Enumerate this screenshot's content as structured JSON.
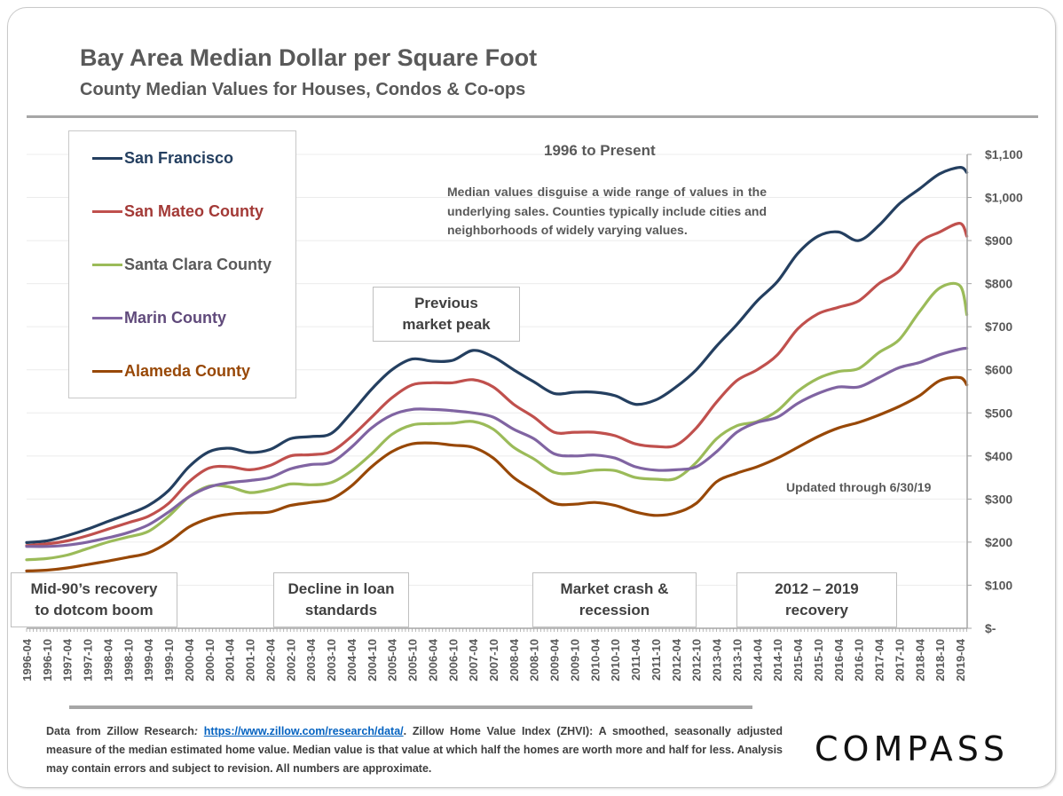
{
  "header": {
    "title": "Bay Area Median Dollar per Square Foot",
    "subtitle": "County Median Values for Houses, Condos & Co-ops"
  },
  "annotations": {
    "period": "1996 to Present",
    "note": "Median values disguise a wide range of values in the underlying sales. Counties typically include cities and neighborhoods of widely varying values.",
    "updated": "Updated through 6/30/19",
    "callouts": [
      {
        "text_line1": "Previous",
        "text_line2": "market peak"
      },
      {
        "text_line1": "Mid-90’s recovery",
        "text_line2": "to dotcom boom"
      },
      {
        "text_line1": "Decline in loan",
        "text_line2": "standards"
      },
      {
        "text_line1": "Market crash &",
        "text_line2": "recession"
      },
      {
        "text_line1": "2012 – 2019",
        "text_line2": "recovery"
      }
    ]
  },
  "footer": {
    "prefix": "Data from Zillow Research",
    "colon": ": ",
    "link": "https://www.zillow.com/research/data/",
    "body": ". Zillow Home Value Index (ZHVI): A smoothed, seasonally adjusted measure of the median estimated home value. Median value is that value at which half the homes are worth more and half for less. Analysis may contain errors and subject to revision. All numbers are approximate.",
    "logo": "COMPASS"
  },
  "chart_data": {
    "type": "line",
    "title": "Bay Area Median Dollar per Square Foot",
    "subtitle": "County Median Values for Houses, Condos & Co-ops",
    "xlabel": "",
    "ylabel": "",
    "ylim": [
      0,
      1100
    ],
    "y_ticks": [
      0,
      100,
      200,
      300,
      400,
      500,
      600,
      700,
      800,
      900,
      1000,
      1100
    ],
    "y_tick_labels": [
      "$-",
      "$100",
      "$200",
      "$300",
      "$400",
      "$500",
      "$600",
      "$700",
      "$800",
      "$900",
      "$1,000",
      "$1,100"
    ],
    "y_axis_position": "right",
    "grid": true,
    "legend_position": "top-left",
    "x": [
      "1996-04",
      "1996-10",
      "1997-04",
      "1997-10",
      "1998-04",
      "1998-10",
      "1999-04",
      "1999-10",
      "2000-04",
      "2000-10",
      "2001-04",
      "2001-10",
      "2002-04",
      "2002-10",
      "2003-04",
      "2003-10",
      "2004-04",
      "2004-10",
      "2005-04",
      "2005-10",
      "2006-04",
      "2006-10",
      "2007-04",
      "2007-10",
      "2008-04",
      "2008-10",
      "2009-04",
      "2009-10",
      "2010-04",
      "2010-10",
      "2011-04",
      "2011-10",
      "2012-04",
      "2012-10",
      "2013-04",
      "2013-10",
      "2014-04",
      "2014-10",
      "2015-04",
      "2015-10",
      "2016-04",
      "2016-10",
      "2017-04",
      "2017-10",
      "2018-04",
      "2018-10",
      "2019-04",
      "2019-06"
    ],
    "series": [
      {
        "name": "San Francisco",
        "color": "#243f60",
        "values": [
          199,
          203,
          215,
          230,
          248,
          265,
          285,
          320,
          375,
          410,
          418,
          408,
          415,
          440,
          445,
          452,
          500,
          555,
          600,
          625,
          620,
          622,
          645,
          630,
          600,
          572,
          545,
          548,
          548,
          540,
          520,
          530,
          560,
          600,
          655,
          705,
          760,
          805,
          870,
          910,
          920,
          900,
          935,
          985,
          1020,
          1055,
          1070,
          1058
        ]
      },
      {
        "name": "San Mateo County",
        "color": "#c0504d",
        "values": [
          192,
          196,
          203,
          215,
          230,
          245,
          260,
          290,
          340,
          372,
          375,
          368,
          378,
          400,
          403,
          410,
          445,
          490,
          535,
          565,
          570,
          570,
          577,
          560,
          520,
          490,
          455,
          455,
          455,
          447,
          428,
          422,
          425,
          465,
          525,
          575,
          600,
          635,
          695,
          730,
          745,
          760,
          800,
          830,
          895,
          920,
          940,
          910
        ]
      },
      {
        "name": "Santa Clara County",
        "color": "#9bbb59",
        "values": [
          159,
          162,
          170,
          185,
          200,
          212,
          225,
          260,
          305,
          330,
          328,
          315,
          322,
          335,
          333,
          338,
          365,
          405,
          450,
          472,
          475,
          476,
          480,
          462,
          420,
          393,
          362,
          360,
          367,
          366,
          350,
          346,
          348,
          385,
          440,
          470,
          480,
          505,
          550,
          580,
          596,
          603,
          640,
          670,
          735,
          790,
          795,
          728
        ]
      },
      {
        "name": "Marin County",
        "color": "#8064a2",
        "values": [
          190,
          190,
          193,
          200,
          210,
          222,
          240,
          270,
          305,
          328,
          338,
          343,
          350,
          370,
          380,
          385,
          420,
          465,
          495,
          508,
          508,
          505,
          500,
          490,
          462,
          440,
          405,
          400,
          402,
          395,
          375,
          367,
          368,
          375,
          410,
          455,
          478,
          490,
          522,
          545,
          560,
          560,
          582,
          605,
          617,
          635,
          648,
          650
        ]
      },
      {
        "name": "Alameda County",
        "color": "#984807",
        "values": [
          133,
          135,
          140,
          148,
          156,
          165,
          175,
          200,
          235,
          255,
          265,
          268,
          270,
          285,
          292,
          300,
          330,
          375,
          410,
          428,
          430,
          425,
          420,
          395,
          350,
          320,
          290,
          288,
          292,
          285,
          270,
          262,
          268,
          290,
          340,
          360,
          375,
          395,
          420,
          445,
          465,
          478,
          495,
          515,
          540,
          575,
          582,
          565
        ]
      }
    ],
    "callouts": [
      "Previous market peak",
      "Mid-90’s recovery to dotcom boom",
      "Decline in loan standards",
      "Market crash & recession",
      "2012 – 2019 recovery"
    ]
  }
}
